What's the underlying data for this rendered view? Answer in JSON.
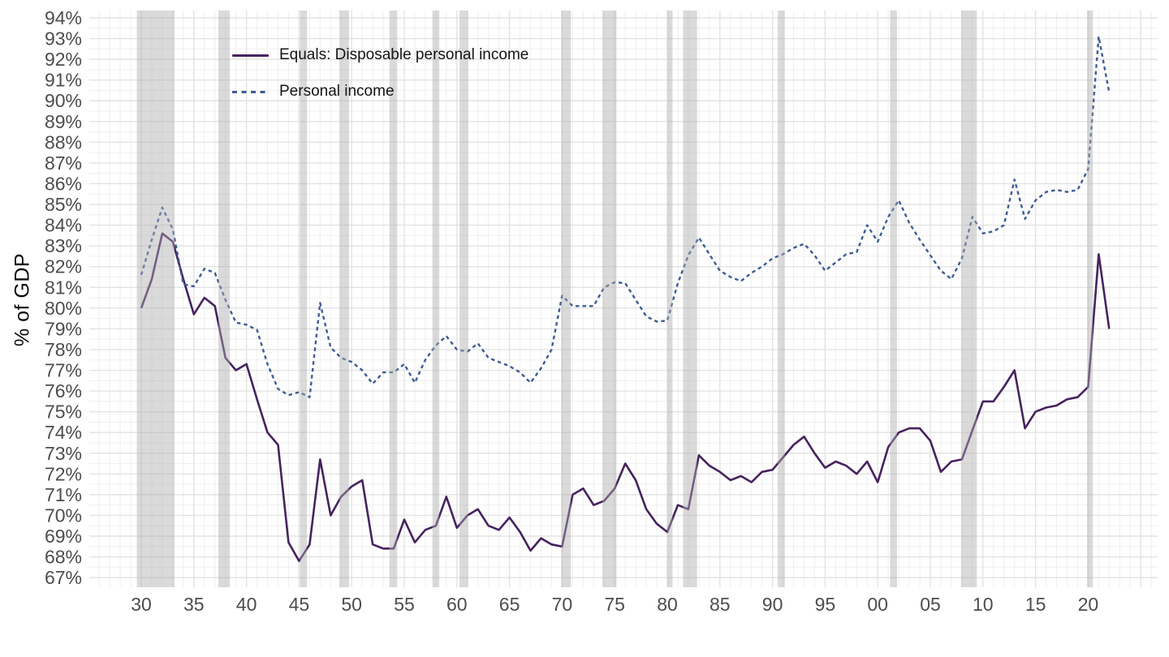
{
  "chart_data": {
    "type": "line",
    "title": "",
    "xlabel": "",
    "ylabel": "% of GDP",
    "grid": "on",
    "legend_position": "top-left-inside",
    "x_start_year": 1930,
    "x": [
      1930,
      1931,
      1932,
      1933,
      1934,
      1935,
      1936,
      1937,
      1938,
      1939,
      1940,
      1941,
      1942,
      1943,
      1944,
      1945,
      1946,
      1947,
      1948,
      1949,
      1950,
      1951,
      1952,
      1953,
      1954,
      1955,
      1956,
      1957,
      1958,
      1959,
      1960,
      1961,
      1962,
      1963,
      1964,
      1965,
      1966,
      1967,
      1968,
      1969,
      1970,
      1971,
      1972,
      1973,
      1974,
      1975,
      1976,
      1977,
      1978,
      1979,
      1980,
      1981,
      1982,
      1983,
      1984,
      1985,
      1986,
      1987,
      1988,
      1989,
      1990,
      1991,
      1992,
      1993,
      1994,
      1995,
      1996,
      1997,
      1998,
      1999,
      2000,
      2001,
      2002,
      2003,
      2004,
      2005,
      2006,
      2007,
      2008,
      2009,
      2010,
      2011,
      2012,
      2013,
      2014,
      2015,
      2016,
      2017,
      2018,
      2019,
      2020,
      2021,
      2022
    ],
    "series": [
      {
        "name": "Equals: Disposable personal income",
        "style": "solid",
        "color": "#46235f",
        "values": [
          80.0,
          81.4,
          83.6,
          83.2,
          81.4,
          79.7,
          80.5,
          80.1,
          77.6,
          77.0,
          77.3,
          75.6,
          74.0,
          73.4,
          68.7,
          67.8,
          68.6,
          72.7,
          70.0,
          70.9,
          71.4,
          71.7,
          68.6,
          68.4,
          68.4,
          69.8,
          68.7,
          69.3,
          69.5,
          70.9,
          69.4,
          70.0,
          70.3,
          69.5,
          69.3,
          69.9,
          69.2,
          68.3,
          68.9,
          68.6,
          68.5,
          71.0,
          71.3,
          70.5,
          70.7,
          71.3,
          72.5,
          71.7,
          70.3,
          69.6,
          69.2,
          70.5,
          70.3,
          72.9,
          72.4,
          72.1,
          71.7,
          71.9,
          71.6,
          72.1,
          72.2,
          72.8,
          73.4,
          73.8,
          73.0,
          72.3,
          72.6,
          72.4,
          72.0,
          72.6,
          71.6,
          73.3,
          74.0,
          74.2,
          74.2,
          73.6,
          72.1,
          72.6,
          72.7,
          74.1,
          75.5,
          75.5,
          76.2,
          77.0,
          74.2,
          75.0,
          75.2,
          75.3,
          75.6,
          75.7,
          76.2,
          82.6,
          79.0
        ]
      },
      {
        "name": "Personal income",
        "style": "dashed",
        "color": "#3e5c94",
        "values": [
          81.6,
          83.3,
          84.85,
          83.8,
          81.15,
          81.05,
          81.9,
          81.7,
          80.4,
          79.3,
          79.2,
          78.95,
          77.3,
          76.1,
          75.8,
          75.95,
          75.7,
          80.25,
          78.1,
          77.6,
          77.4,
          77.0,
          76.35,
          76.9,
          76.9,
          77.3,
          76.4,
          77.5,
          78.2,
          78.65,
          78.0,
          77.9,
          78.3,
          77.6,
          77.4,
          77.2,
          76.9,
          76.4,
          77.1,
          78.0,
          80.6,
          80.1,
          80.1,
          80.1,
          81.0,
          81.25,
          81.2,
          80.4,
          79.6,
          79.35,
          79.4,
          81.2,
          82.55,
          83.4,
          82.6,
          81.8,
          81.5,
          81.3,
          81.7,
          82.0,
          82.4,
          82.6,
          82.9,
          83.1,
          82.55,
          81.8,
          82.2,
          82.6,
          82.7,
          84.0,
          83.2,
          84.4,
          85.2,
          84.1,
          83.3,
          82.55,
          81.8,
          81.4,
          82.4,
          84.4,
          83.6,
          83.7,
          84.0,
          86.2,
          84.3,
          85.2,
          85.6,
          85.7,
          85.6,
          85.7,
          86.7,
          93.1,
          90.4
        ]
      }
    ],
    "y_ticks": [
      {
        "value": 67,
        "label": "67%"
      },
      {
        "value": 68,
        "label": "68%"
      },
      {
        "value": 69,
        "label": "69%"
      },
      {
        "value": 70,
        "label": "70%"
      },
      {
        "value": 71,
        "label": "71%"
      },
      {
        "value": 72,
        "label": "72%"
      },
      {
        "value": 73,
        "label": "73%"
      },
      {
        "value": 74,
        "label": "74%"
      },
      {
        "value": 75,
        "label": "75%"
      },
      {
        "value": 76,
        "label": "76%"
      },
      {
        "value": 77,
        "label": "77%"
      },
      {
        "value": 78,
        "label": "78%"
      },
      {
        "value": 79,
        "label": "79%"
      },
      {
        "value": 80,
        "label": "80%"
      },
      {
        "value": 81,
        "label": "81%"
      },
      {
        "value": 82,
        "label": "82%"
      },
      {
        "value": 83,
        "label": "83%"
      },
      {
        "value": 84,
        "label": "84%"
      },
      {
        "value": 85,
        "label": "85%"
      },
      {
        "value": 86,
        "label": "86%"
      },
      {
        "value": 87,
        "label": "87%"
      },
      {
        "value": 88,
        "label": "88%"
      },
      {
        "value": 89,
        "label": "89%"
      },
      {
        "value": 90,
        "label": "90%"
      },
      {
        "value": 91,
        "label": "91%"
      },
      {
        "value": 92,
        "label": "92%"
      },
      {
        "value": 93,
        "label": "93%"
      },
      {
        "value": 94,
        "label": "94%"
      }
    ],
    "x_ticks": [
      {
        "year": 1930,
        "label": "30"
      },
      {
        "year": 1935,
        "label": "35"
      },
      {
        "year": 1940,
        "label": "40"
      },
      {
        "year": 1945,
        "label": "45"
      },
      {
        "year": 1950,
        "label": "50"
      },
      {
        "year": 1955,
        "label": "55"
      },
      {
        "year": 1960,
        "label": "60"
      },
      {
        "year": 1965,
        "label": "65"
      },
      {
        "year": 1970,
        "label": "70"
      },
      {
        "year": 1975,
        "label": "75"
      },
      {
        "year": 1980,
        "label": "80"
      },
      {
        "year": 1985,
        "label": "85"
      },
      {
        "year": 1990,
        "label": "90"
      },
      {
        "year": 1995,
        "label": "95"
      },
      {
        "year": 2000,
        "label": "00"
      },
      {
        "year": 2005,
        "label": "05"
      },
      {
        "year": 2010,
        "label": "10"
      },
      {
        "year": 2015,
        "label": "15"
      },
      {
        "year": 2020,
        "label": "20"
      }
    ],
    "ylim": [
      66.5,
      94.4
    ],
    "xlim": [
      1925.1,
      2026.9
    ],
    "recession_bands": [
      [
        1929.58,
        1933.17
      ],
      [
        1937.33,
        1938.42
      ],
      [
        1945.08,
        1945.75
      ],
      [
        1948.83,
        1949.75
      ],
      [
        1953.58,
        1954.33
      ],
      [
        1957.67,
        1958.33
      ],
      [
        1960.25,
        1961.08
      ],
      [
        1969.92,
        1970.83
      ],
      [
        1973.83,
        1975.17
      ],
      [
        1980.0,
        1980.5
      ],
      [
        1981.5,
        1982.83
      ],
      [
        1990.5,
        1991.17
      ],
      [
        2001.17,
        2001.83
      ],
      [
        2007.92,
        2009.42
      ],
      [
        2019.9,
        2020.45
      ]
    ]
  },
  "legend": {
    "items": [
      {
        "label": "Equals: Disposable personal income"
      },
      {
        "label": "Personal income"
      }
    ]
  },
  "colors": {
    "dpi_line": "#46235f",
    "personal_income_line": "#3e5c94",
    "recession_band": "rgba(172,172,172,0.45)",
    "grid_minor": "#f0f0f0",
    "grid_major": "#e3e3e3",
    "tick_text": "#4d4d4d",
    "axis_title_text": "#0d0d0d",
    "background": "#ffffff"
  }
}
